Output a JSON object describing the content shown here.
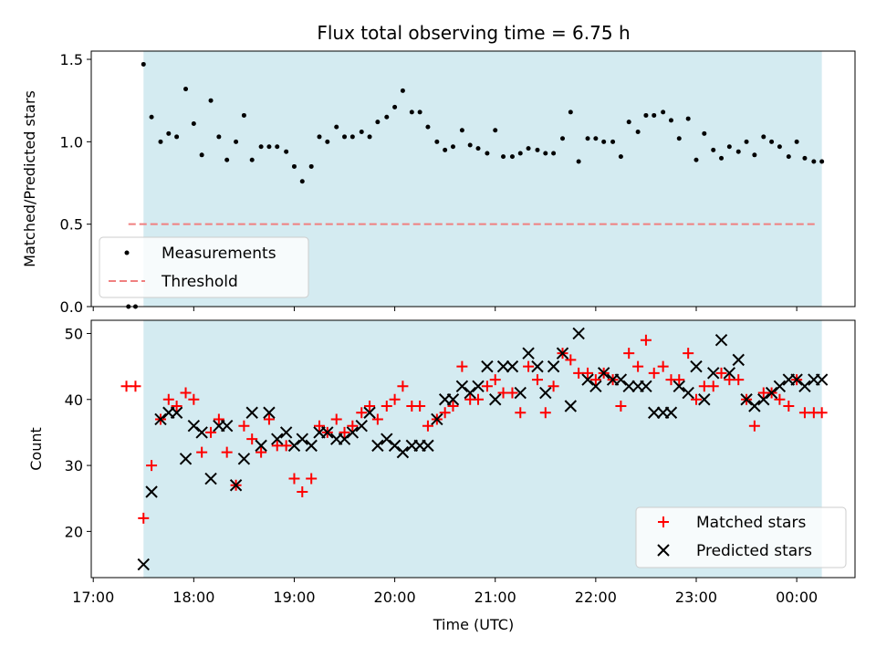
{
  "chart_data": {
    "type": "scatter",
    "title": "Flux total observing time = 6.75 h",
    "xlabel": "Time (UTC)",
    "x_ticks": [
      "17:00",
      "18:00",
      "19:00",
      "20:00",
      "21:00",
      "22:00",
      "23:00",
      "00:00"
    ],
    "x_range_hours": [
      16.98,
      24.58
    ],
    "observing_window_hours": [
      17.5,
      24.25
    ],
    "window_color": "#d4ebf1",
    "top": {
      "ylabel": "Matched/Predicted stars",
      "ylim": [
        0,
        1.55
      ],
      "yticks": [
        "0.0",
        "0.5",
        "1.0",
        "1.5"
      ],
      "legend_position": "lower-left",
      "threshold": {
        "name": "Threshold",
        "value": 0.5,
        "x_start": 17.35,
        "x_end": 24.2,
        "color": "#f08080"
      },
      "measurements": {
        "name": "Measurements",
        "color": "#000000",
        "x": [
          17.35,
          17.42,
          17.5,
          17.58,
          17.67,
          17.75,
          17.83,
          17.92,
          18.0,
          18.08,
          18.17,
          18.25,
          18.33,
          18.42,
          18.5,
          18.58,
          18.67,
          18.75,
          18.83,
          18.92,
          19.0,
          19.08,
          19.17,
          19.25,
          19.33,
          19.42,
          19.5,
          19.58,
          19.67,
          19.75,
          19.83,
          19.92,
          20.0,
          20.08,
          20.17,
          20.25,
          20.33,
          20.42,
          20.5,
          20.58,
          20.67,
          20.75,
          20.83,
          20.92,
          21.0,
          21.08,
          21.17,
          21.25,
          21.33,
          21.42,
          21.5,
          21.58,
          21.67,
          21.75,
          21.83,
          21.92,
          22.0,
          22.08,
          22.17,
          22.25,
          22.33,
          22.42,
          22.5,
          22.58,
          22.67,
          22.75,
          22.83,
          22.92,
          23.0,
          23.08,
          23.17,
          23.25,
          23.33,
          23.42,
          23.5,
          23.58,
          23.67,
          23.75,
          23.83,
          23.92,
          24.0,
          24.08,
          24.17,
          24.25
        ],
        "y": [
          0.0,
          0.0,
          1.47,
          1.15,
          1.0,
          1.05,
          1.03,
          1.32,
          1.11,
          0.92,
          1.25,
          1.03,
          0.89,
          1.0,
          1.16,
          0.89,
          0.97,
          0.97,
          0.97,
          0.94,
          0.85,
          0.76,
          0.85,
          1.03,
          1.0,
          1.09,
          1.03,
          1.03,
          1.06,
          1.03,
          1.12,
          1.15,
          1.21,
          1.31,
          1.18,
          1.18,
          1.09,
          1.0,
          0.95,
          0.97,
          1.07,
          0.98,
          0.96,
          0.93,
          1.07,
          0.91,
          0.91,
          0.93,
          0.96,
          0.95,
          0.93,
          0.93,
          1.02,
          1.18,
          0.88,
          1.02,
          1.02,
          1.0,
          1.0,
          0.91,
          1.12,
          1.06,
          1.16,
          1.16,
          1.18,
          1.13,
          1.02,
          1.14,
          0.89,
          1.05,
          0.95,
          0.9,
          0.97,
          0.94,
          1.0,
          0.92,
          1.03,
          1.0,
          0.97,
          0.91,
          1.0,
          0.9,
          0.88,
          0.88
        ]
      }
    },
    "bottom": {
      "ylabel": "Count",
      "ylim": [
        13,
        52
      ],
      "yticks": [
        "20",
        "30",
        "40",
        "50"
      ],
      "legend_position": "lower-right",
      "matched": {
        "name": "Matched stars",
        "color": "#ff0000",
        "x": [
          17.33,
          17.42,
          17.5,
          17.58,
          17.67,
          17.75,
          17.83,
          17.92,
          18.0,
          18.08,
          18.17,
          18.25,
          18.33,
          18.42,
          18.5,
          18.58,
          18.67,
          18.75,
          18.83,
          18.92,
          19.0,
          19.08,
          19.17,
          19.25,
          19.33,
          19.42,
          19.5,
          19.58,
          19.67,
          19.75,
          19.83,
          19.92,
          20.0,
          20.08,
          20.17,
          20.25,
          20.33,
          20.42,
          20.5,
          20.58,
          20.67,
          20.75,
          20.83,
          20.92,
          21.0,
          21.08,
          21.17,
          21.25,
          21.33,
          21.42,
          21.5,
          21.58,
          21.67,
          21.75,
          21.83,
          21.92,
          22.0,
          22.08,
          22.17,
          22.25,
          22.33,
          22.42,
          22.5,
          22.58,
          22.67,
          22.75,
          22.83,
          22.92,
          23.0,
          23.08,
          23.17,
          23.25,
          23.33,
          23.42,
          23.5,
          23.58,
          23.67,
          23.75,
          23.83,
          23.92,
          24.0,
          24.08,
          24.17,
          24.25
        ],
        "y": [
          42,
          42,
          22,
          30,
          37,
          40,
          39,
          41,
          40,
          32,
          35,
          37,
          32,
          27,
          36,
          34,
          32,
          37,
          33,
          33,
          28,
          26,
          28,
          36,
          35,
          37,
          35,
          36,
          38,
          39,
          37,
          39,
          40,
          42,
          39,
          39,
          36,
          37,
          38,
          39,
          45,
          40,
          40,
          42,
          43,
          41,
          41,
          38,
          45,
          43,
          38,
          42,
          47,
          46,
          44,
          44,
          43,
          44,
          43,
          39,
          47,
          45,
          49,
          44,
          45,
          43,
          43,
          47,
          40,
          42,
          42,
          44,
          43,
          43,
          40,
          36,
          41,
          41,
          40,
          39,
          43,
          38,
          38,
          38
        ]
      },
      "predicted": {
        "name": "Predicted stars",
        "color": "#000000",
        "x": [
          17.5,
          17.58,
          17.67,
          17.75,
          17.83,
          17.92,
          18.0,
          18.08,
          18.17,
          18.25,
          18.33,
          18.42,
          18.5,
          18.58,
          18.67,
          18.75,
          18.83,
          18.92,
          19.0,
          19.08,
          19.17,
          19.25,
          19.33,
          19.42,
          19.5,
          19.58,
          19.67,
          19.75,
          19.83,
          19.92,
          20.0,
          20.08,
          20.17,
          20.25,
          20.33,
          20.42,
          20.5,
          20.58,
          20.67,
          20.75,
          20.83,
          20.92,
          21.0,
          21.08,
          21.17,
          21.25,
          21.33,
          21.42,
          21.5,
          21.58,
          21.67,
          21.75,
          21.83,
          21.92,
          22.0,
          22.08,
          22.17,
          22.25,
          22.33,
          22.42,
          22.5,
          22.58,
          22.67,
          22.75,
          22.83,
          22.92,
          23.0,
          23.08,
          23.17,
          23.25,
          23.33,
          23.42,
          23.5,
          23.58,
          23.67,
          23.75,
          23.83,
          23.92,
          24.0,
          24.08,
          24.17,
          24.25
        ],
        "y": [
          15,
          26,
          37,
          38,
          38,
          31,
          36,
          35,
          28,
          36,
          36,
          27,
          31,
          38,
          33,
          38,
          34,
          35,
          33,
          34,
          33,
          35,
          35,
          34,
          34,
          35,
          36,
          38,
          33,
          34,
          33,
          32,
          33,
          33,
          33,
          37,
          40,
          40,
          42,
          41,
          42,
          45,
          40,
          45,
          45,
          41,
          47,
          45,
          41,
          45,
          47,
          39,
          50,
          43,
          42,
          44,
          43,
          43,
          42,
          42,
          42,
          38,
          38,
          38,
          42,
          41,
          45,
          40,
          44,
          49,
          44,
          46,
          40,
          39,
          40,
          41,
          42,
          43,
          43,
          42,
          43,
          43
        ]
      }
    }
  }
}
